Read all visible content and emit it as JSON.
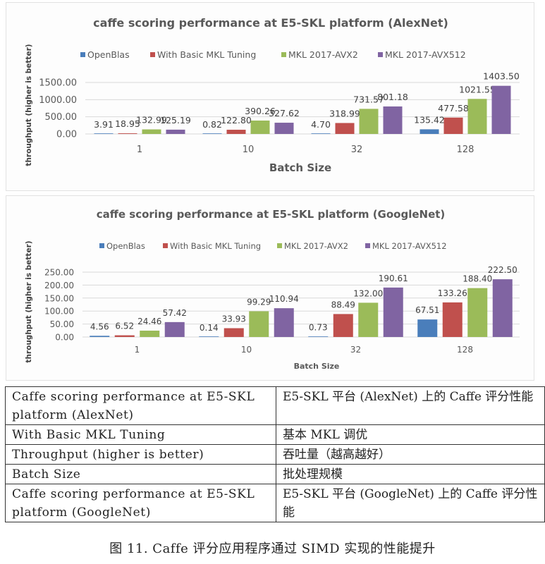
{
  "chart_data": [
    {
      "type": "bar",
      "title": "caffe scoring performance at E5-SKL platform (AlexNet)",
      "xlabel": "Batch Size",
      "ylabel": "throughput (higher is better)",
      "categories": [
        "1",
        "10",
        "32",
        "128"
      ],
      "ylim": [
        0,
        1500
      ],
      "yticks": [
        "0.00",
        "500.00",
        "1000.00",
        "1500.00"
      ],
      "ytick_values": [
        0,
        500,
        1000,
        1500
      ],
      "grid": true,
      "legend_position": "top",
      "series": [
        {
          "name": "OpenBlas",
          "color": "#4a7ebb",
          "values": [
            3.91,
            0.82,
            4.7,
            135.42
          ],
          "labels": [
            "3.91",
            "0.82",
            "4.70",
            "135.42"
          ]
        },
        {
          "name": "With Basic MKL Tuning",
          "color": "#c0504d",
          "values": [
            18.95,
            122.8,
            318.99,
            477.58
          ],
          "labels": [
            "18.95",
            "122.80",
            "318.99",
            "477.58"
          ]
        },
        {
          "name": "MKL 2017-AVX2",
          "color": "#9bbb59",
          "values": [
            132.99,
            390.26,
            731.57,
            1021.55
          ],
          "labels": [
            "132.99",
            "390.26",
            "731.57",
            "1021.55"
          ]
        },
        {
          "name": "MKL 2017-AVX512",
          "color": "#8064a2",
          "values": [
            125.19,
            327.62,
            801.18,
            1403.5
          ],
          "labels": [
            "125.19",
            "327.62",
            "801.18",
            "1403.50"
          ]
        }
      ]
    },
    {
      "type": "bar",
      "title": "caffe scoring performance at E5-SKL platform (GoogleNet)",
      "xlabel": "Batch Size",
      "ylabel": "throughput (higher is better)",
      "categories": [
        "1",
        "10",
        "32",
        "128"
      ],
      "ylim": [
        0,
        250
      ],
      "yticks": [
        "0.00",
        "50.00",
        "100.00",
        "150.00",
        "200.00",
        "250.00"
      ],
      "ytick_values": [
        0,
        50,
        100,
        150,
        200,
        250
      ],
      "grid": true,
      "legend_position": "top",
      "series": [
        {
          "name": "OpenBlas",
          "color": "#4a7ebb",
          "values": [
            4.56,
            0.14,
            0.73,
            67.51
          ],
          "labels": [
            "4.56",
            "0.14",
            "0.73",
            "67.51"
          ]
        },
        {
          "name": "With Basic MKL Tuning",
          "color": "#c0504d",
          "values": [
            6.52,
            33.93,
            88.49,
            133.26
          ],
          "labels": [
            "6.52",
            "33.93",
            "88.49",
            "133.26"
          ]
        },
        {
          "name": "MKL 2017-AVX2",
          "color": "#9bbb59",
          "values": [
            24.46,
            99.29,
            132.0,
            188.4
          ],
          "labels": [
            "24.46",
            "99.29",
            "132.00",
            "188.40"
          ]
        },
        {
          "name": "MKL 2017-AVX512",
          "color": "#8064a2",
          "values": [
            57.42,
            110.94,
            190.61,
            222.5
          ],
          "labels": [
            "57.42",
            "110.94",
            "190.61",
            "222.50"
          ]
        }
      ]
    }
  ],
  "translation_table": {
    "rows": [
      {
        "en": "Caffe scoring performance at E5-SKL platform (AlexNet)",
        "zh": "E5-SKL 平台 (AlexNet) 上的 Caffe 评分性能"
      },
      {
        "en": "With Basic MKL Tuning",
        "zh": "基本 MKL 调优"
      },
      {
        "en": "Throughput (higher is better)",
        "zh": "吞吐量（越高越好）"
      },
      {
        "en": "Batch Size",
        "zh": "批处理规模"
      },
      {
        "en": "Caffe scoring performance at E5-SKL platform (GoogleNet)",
        "zh": "E5-SKL 平台 (GoogleNet) 上的 Caffe 评分性能"
      }
    ]
  },
  "caption": "图 11.  Caffe 评分应用程序通过 SIMD 实现的性能提升"
}
